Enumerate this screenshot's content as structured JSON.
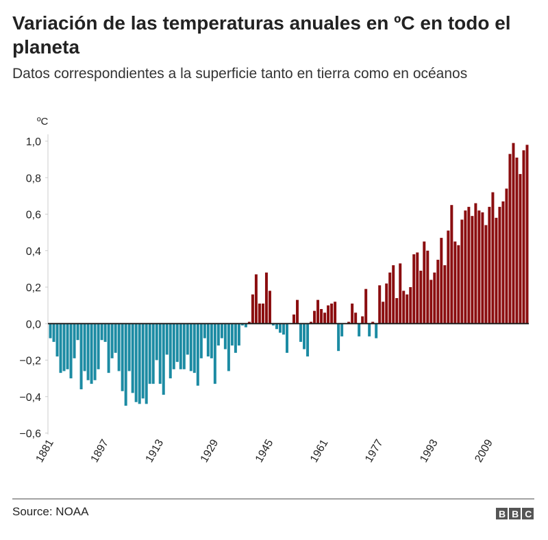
{
  "chart_data": {
    "type": "bar",
    "title": "Variación de las temperaturas anuales en ºC en todo el planeta",
    "subtitle": "Datos correspondientes a la superficie tanto en tierra como en océanos",
    "y_label": "ºC",
    "source": "Source: NOAA",
    "brand": "BBC",
    "positive_color": "#8b0e10",
    "negative_color": "#1c8ba3",
    "categories": [
      "1881",
      null,
      null,
      null,
      null,
      null,
      null,
      null,
      null,
      null,
      null,
      null,
      null,
      null,
      null,
      null,
      "1897",
      null,
      null,
      null,
      null,
      null,
      null,
      null,
      null,
      null,
      null,
      null,
      null,
      null,
      null,
      null,
      "1913",
      null,
      null,
      null,
      null,
      null,
      null,
      null,
      null,
      null,
      null,
      null,
      null,
      null,
      null,
      null,
      "1929",
      null,
      null,
      null,
      null,
      null,
      null,
      null,
      null,
      null,
      null,
      null,
      null,
      null,
      null,
      null,
      "1945",
      null,
      null,
      null,
      null,
      null,
      null,
      null,
      null,
      null,
      null,
      null,
      null,
      null,
      null,
      null,
      "1961",
      null,
      null,
      null,
      null,
      null,
      null,
      null,
      null,
      null,
      null,
      null,
      null,
      null,
      null,
      null,
      "1977",
      null,
      null,
      null,
      null,
      null,
      null,
      null,
      null,
      null,
      null,
      null,
      null,
      null,
      null,
      null,
      "1993",
      null,
      null,
      null,
      null,
      null,
      null,
      null,
      null,
      null,
      null,
      null,
      null,
      null,
      null,
      null,
      "2009",
      null,
      null,
      null,
      null,
      null,
      null,
      null,
      null,
      null,
      null,
      null
    ],
    "values": [
      -0.08,
      -0.1,
      -0.18,
      -0.27,
      -0.26,
      -0.25,
      -0.3,
      -0.19,
      -0.09,
      -0.36,
      -0.26,
      -0.31,
      -0.33,
      -0.31,
      -0.25,
      -0.09,
      -0.1,
      -0.27,
      -0.19,
      -0.16,
      -0.26,
      -0.37,
      -0.45,
      -0.26,
      -0.38,
      -0.43,
      -0.44,
      -0.41,
      -0.44,
      -0.33,
      -0.33,
      -0.2,
      -0.33,
      -0.39,
      -0.17,
      -0.3,
      -0.25,
      -0.21,
      -0.25,
      -0.25,
      -0.17,
      -0.26,
      -0.27,
      -0.34,
      -0.19,
      -0.08,
      -0.18,
      -0.19,
      -0.33,
      -0.12,
      -0.08,
      -0.14,
      -0.26,
      -0.12,
      -0.16,
      -0.12,
      -0.01,
      -0.02,
      0.01,
      0.16,
      0.27,
      0.11,
      0.11,
      0.28,
      0.18,
      -0.01,
      -0.03,
      -0.05,
      -0.06,
      -0.16,
      0.0,
      0.05,
      0.13,
      -0.1,
      -0.14,
      -0.18,
      0.01,
      0.07,
      0.13,
      0.08,
      0.06,
      0.1,
      0.11,
      0.12,
      -0.15,
      -0.07,
      0.0,
      0.01,
      0.11,
      0.06,
      -0.07,
      0.04,
      0.19,
      -0.07,
      0.01,
      -0.08,
      0.21,
      0.12,
      0.22,
      0.28,
      0.32,
      0.14,
      0.33,
      0.18,
      0.16,
      0.2,
      0.38,
      0.39,
      0.29,
      0.45,
      0.4,
      0.24,
      0.28,
      0.35,
      0.47,
      0.32,
      0.51,
      0.65,
      0.45,
      0.43,
      0.57,
      0.62,
      0.64,
      0.59,
      0.66,
      0.62,
      0.61,
      0.54,
      0.64,
      0.72,
      0.58,
      0.64,
      0.67,
      0.74,
      0.93,
      0.99,
      0.91,
      0.82,
      0.95,
      0.98
    ],
    "ylim": [
      -0.6,
      1.0
    ],
    "yticks": [
      {
        "value": -0.6,
        "label": "−0,6"
      },
      {
        "value": -0.4,
        "label": "−0,4"
      },
      {
        "value": -0.2,
        "label": "−0,2"
      },
      {
        "value": 0,
        "label": "0,0"
      },
      {
        "value": 0.2,
        "label": "0,2"
      },
      {
        "value": 0.4,
        "label": "0,4"
      },
      {
        "value": 0.6,
        "label": "0,6"
      },
      {
        "value": 0.8,
        "label": "0,8"
      },
      {
        "value": 1.0,
        "label": "1,0"
      }
    ]
  }
}
